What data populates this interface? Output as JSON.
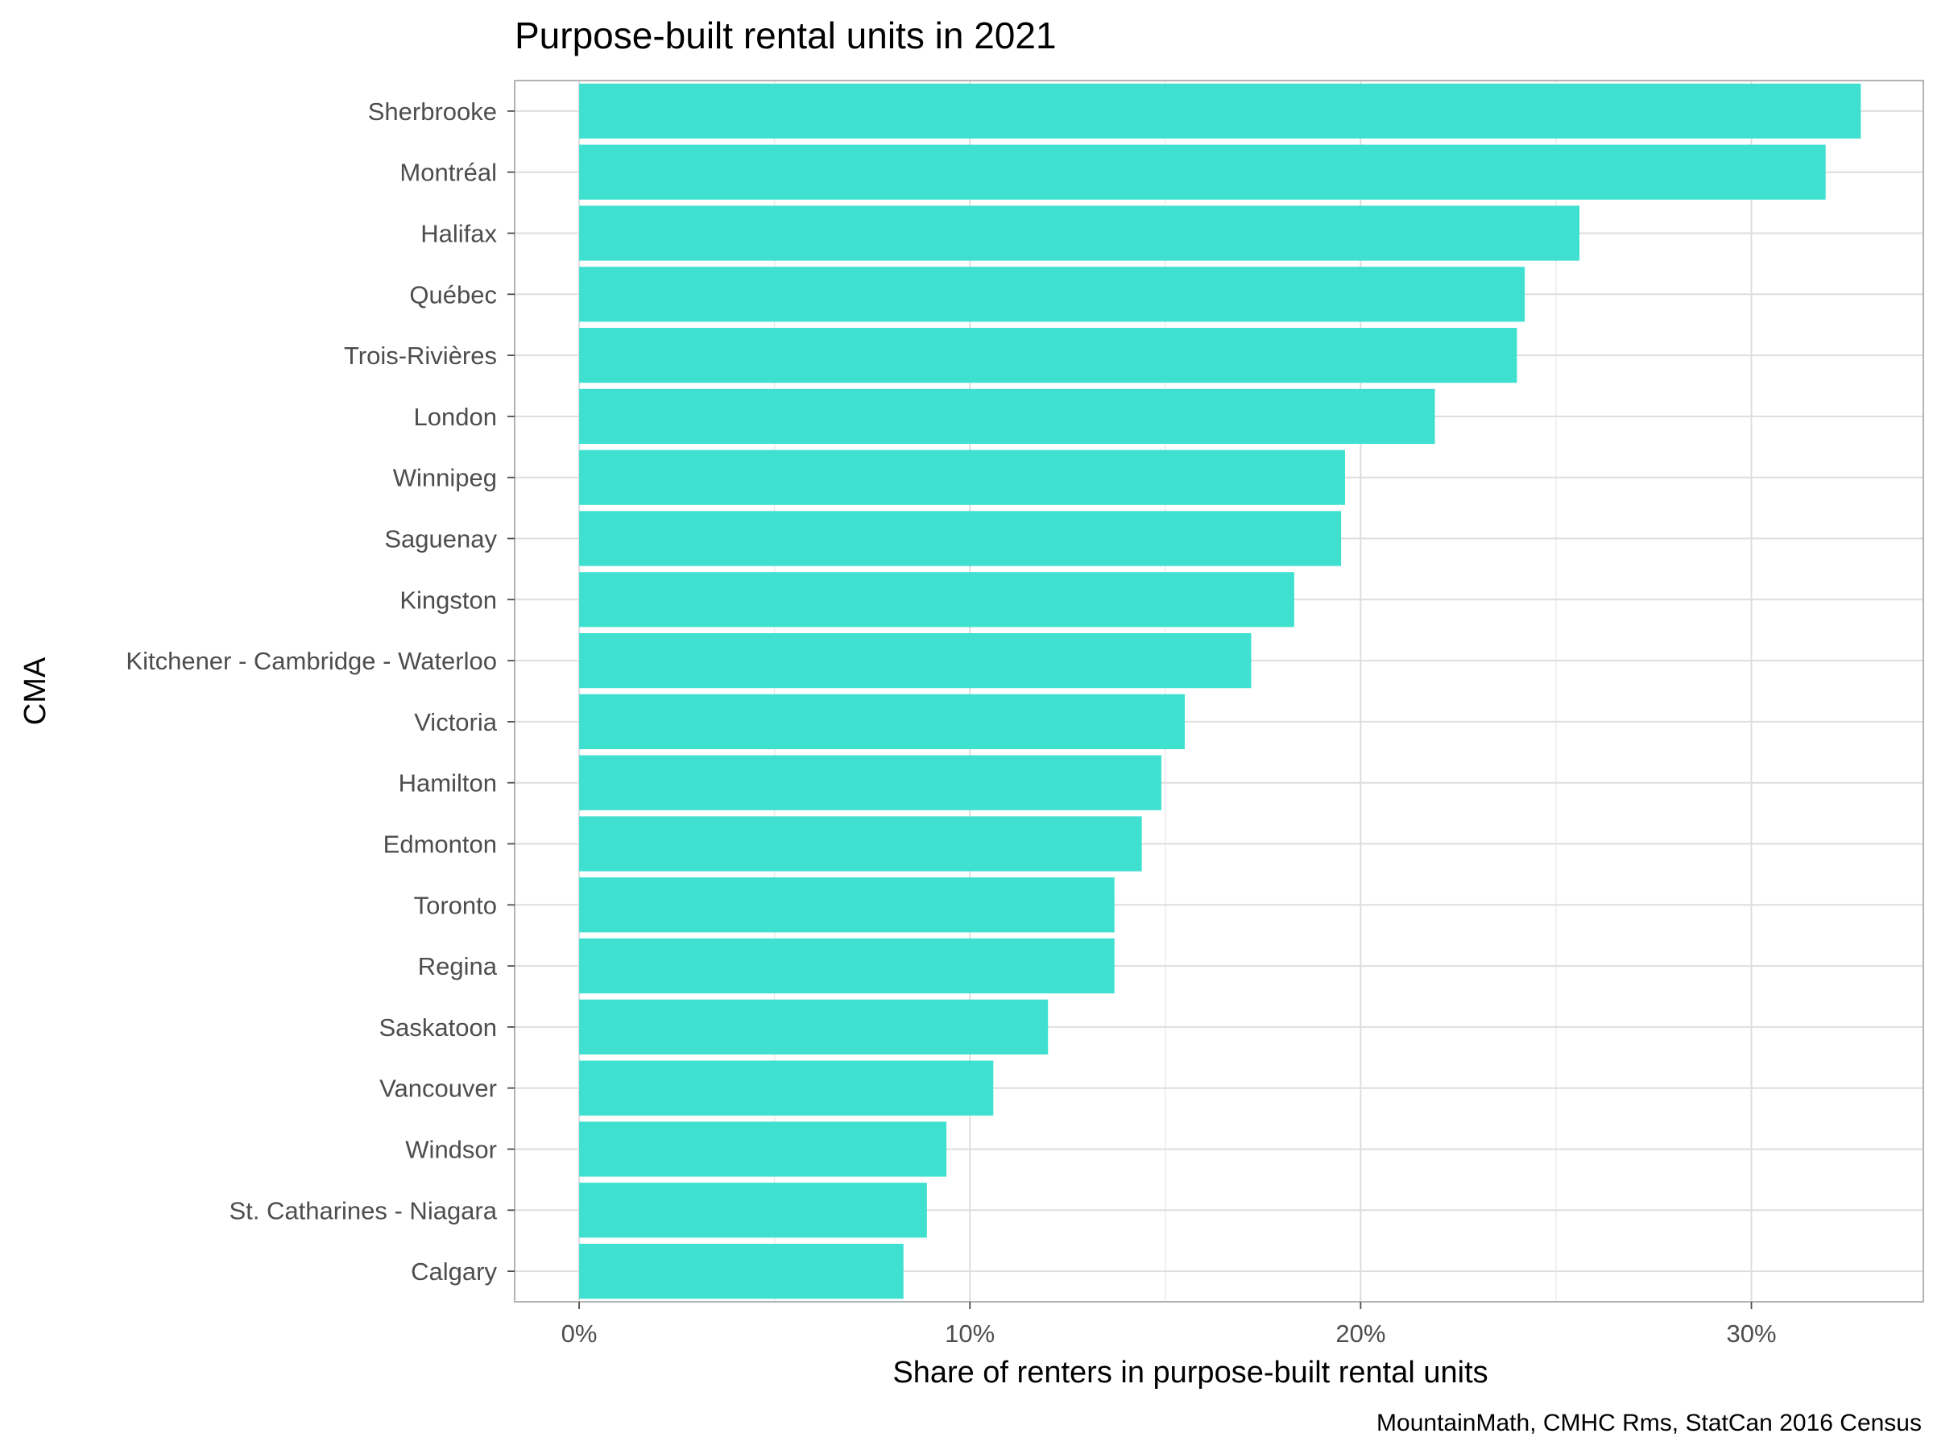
{
  "chart_data": {
    "type": "bar",
    "orientation": "horizontal",
    "title": "Purpose-built rental units in 2021",
    "xlabel": "Share of renters in purpose-built rental units",
    "ylabel": "CMA",
    "caption": "MountainMath, CMHC Rms, StatCan 2016 Census",
    "categories": [
      "Sherbrooke",
      "Montréal",
      "Halifax",
      "Québec",
      "Trois-Rivières",
      "London",
      "Winnipeg",
      "Saguenay",
      "Kingston",
      "Kitchener - Cambridge - Waterloo",
      "Victoria",
      "Hamilton",
      "Edmonton",
      "Toronto",
      "Regina",
      "Saskatoon",
      "Vancouver",
      "Windsor",
      "St. Catharines - Niagara",
      "Calgary"
    ],
    "values": [
      0.328,
      0.319,
      0.256,
      0.242,
      0.24,
      0.219,
      0.196,
      0.195,
      0.183,
      0.172,
      0.155,
      0.149,
      0.144,
      0.137,
      0.137,
      0.12,
      0.106,
      0.094,
      0.089,
      0.083
    ],
    "xlim": [
      -0.0165,
      0.344
    ],
    "xticks": [
      0,
      0.1,
      0.2,
      0.3
    ],
    "xtick_labels": [
      "0%",
      "10%",
      "20%",
      "30%"
    ],
    "bar_color": "#40E0D0",
    "grid": true
  }
}
